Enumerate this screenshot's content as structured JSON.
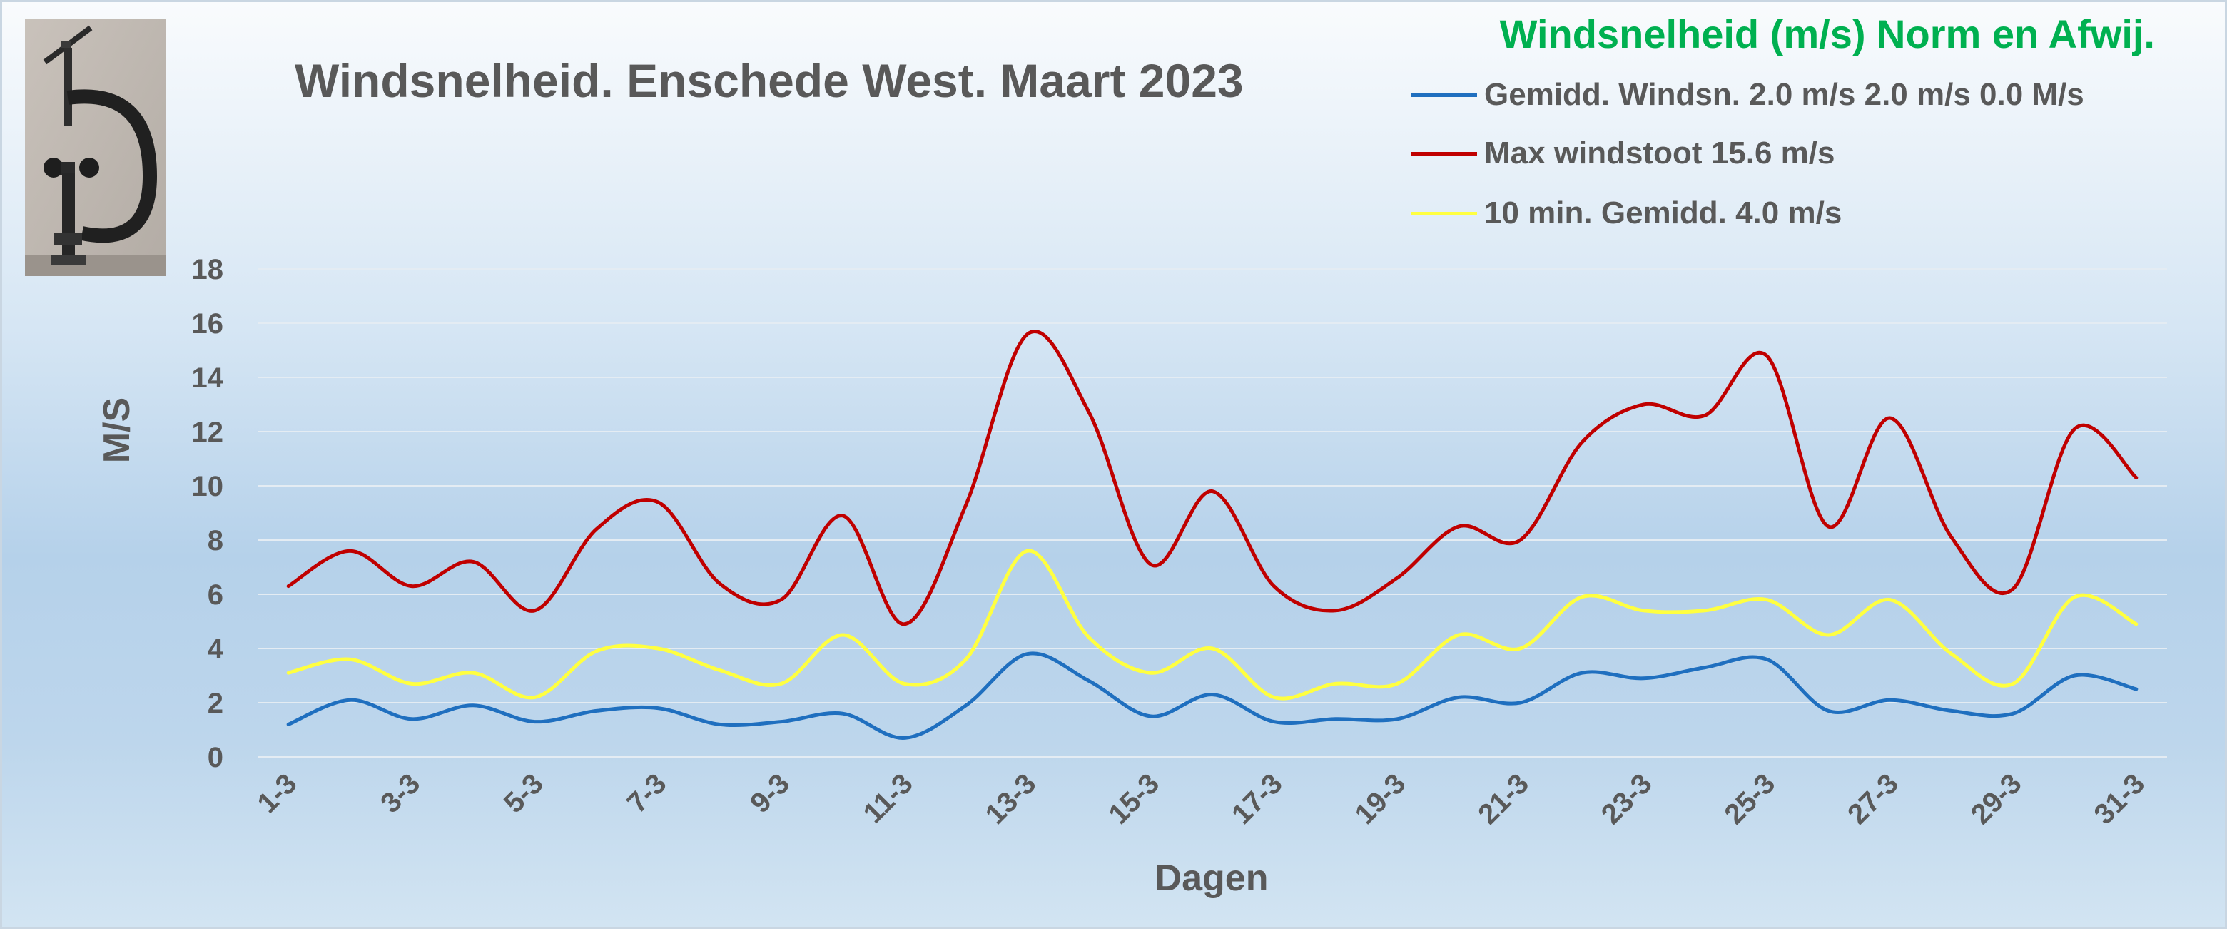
{
  "chart_data": {
    "type": "line",
    "title": "Windsnelheid. Enschede West. Maart 2023",
    "xlabel": "Dagen",
    "ylabel": "M/S",
    "ylim": [
      0,
      18
    ],
    "yticks": [
      0,
      2,
      4,
      6,
      8,
      10,
      12,
      14,
      16,
      18
    ],
    "grid": true,
    "legend_position": "top-right",
    "legend_title": "Windsnelheid (m/s) Norm en Afwij.",
    "x": [
      "1-3",
      "2-3",
      "3-3",
      "4-3",
      "5-3",
      "6-3",
      "7-3",
      "8-3",
      "9-3",
      "10-3",
      "11-3",
      "12-3",
      "13-3",
      "14-3",
      "15-3",
      "16-3",
      "17-3",
      "18-3",
      "19-3",
      "20-3",
      "21-3",
      "22-3",
      "23-3",
      "24-3",
      "25-3",
      "26-3",
      "27-3",
      "28-3",
      "29-3",
      "30-3",
      "31-3"
    ],
    "x_tick_labels": [
      "1-3",
      "",
      "3-3",
      "",
      "5-3",
      "",
      "7-3",
      "",
      "9-3",
      "",
      "11-3",
      "",
      "13-3",
      "",
      "15-3",
      "",
      "17-3",
      "",
      "19-3",
      "",
      "21-3",
      "",
      "23-3",
      "",
      "25-3",
      "",
      "27-3",
      "",
      "29-3",
      "",
      "31-3"
    ],
    "series": [
      {
        "name": "Gemidd. Windsn. 2.0 m/s 2.0 m/s 0.0 M/s",
        "color": "#1f6fbf",
        "values": [
          1.2,
          2.1,
          1.4,
          1.9,
          1.3,
          1.7,
          1.8,
          1.2,
          1.3,
          1.6,
          0.7,
          1.9,
          3.8,
          2.8,
          1.5,
          2.3,
          1.3,
          1.4,
          1.4,
          2.2,
          2.0,
          3.1,
          2.9,
          3.3,
          3.6,
          1.7,
          2.1,
          1.7,
          1.6,
          3.0,
          2.5
        ]
      },
      {
        "name": "Max windstoot 15.6 m/s",
        "color": "#c00000",
        "values": [
          6.3,
          7.6,
          6.3,
          7.2,
          5.4,
          8.4,
          9.4,
          6.4,
          5.8,
          8.9,
          4.9,
          9.3,
          15.6,
          12.7,
          7.1,
          9.8,
          6.3,
          5.4,
          6.6,
          8.5,
          8.0,
          11.6,
          13.0,
          12.6,
          14.8,
          8.5,
          12.5,
          8.1,
          6.2,
          12.1,
          10.3
        ]
      },
      {
        "name": "10 min. Gemidd. 4.0 m/s",
        "color": "#ffff40",
        "values": [
          3.1,
          3.6,
          2.7,
          3.1,
          2.2,
          3.9,
          4.0,
          3.2,
          2.7,
          4.5,
          2.7,
          3.6,
          7.6,
          4.4,
          3.1,
          4.0,
          2.2,
          2.7,
          2.7,
          4.5,
          4.0,
          5.9,
          5.4,
          5.4,
          5.8,
          4.5,
          5.8,
          3.8,
          2.7,
          5.9,
          4.9
        ]
      }
    ]
  }
}
